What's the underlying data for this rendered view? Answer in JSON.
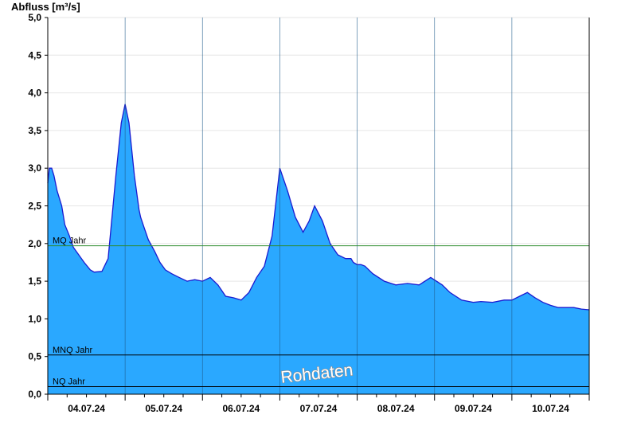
{
  "chart_data": {
    "type": "area",
    "title": "",
    "ylabel": "Abfluss [m³/s]",
    "xlabel": "",
    "ylim": [
      0,
      5
    ],
    "xlim": [
      0,
      7
    ],
    "yticks": [
      "0,0",
      "0,5",
      "1,0",
      "1,5",
      "2,0",
      "2,5",
      "3,0",
      "3,5",
      "4,0",
      "4,5",
      "5,0"
    ],
    "xtick_labels": [
      "04.07.24",
      "05.07.24",
      "06.07.24",
      "07.07.24",
      "08.07.24",
      "09.07.24",
      "10.07.24"
    ],
    "grid": true,
    "series": [
      {
        "color": "#2aa8ff",
        "line_color": "#1a1ad0",
        "x": [
          0,
          0.02,
          0.05,
          0.08,
          0.12,
          0.18,
          0.22,
          0.28,
          0.33,
          0.4,
          0.47,
          0.55,
          0.6,
          0.7,
          0.78,
          0.88,
          0.95,
          1.0,
          1.05,
          1.12,
          1.18,
          1.2,
          1.25,
          1.3,
          1.38,
          1.45,
          1.52,
          1.6,
          1.7,
          1.8,
          1.9,
          2.0,
          2.1,
          2.2,
          2.3,
          2.4,
          2.5,
          2.6,
          2.7,
          2.8,
          2.9,
          3.0,
          3.1,
          3.2,
          3.3,
          3.38,
          3.45,
          3.55,
          3.65,
          3.75,
          3.85,
          3.92,
          3.95,
          4.0,
          4.05,
          4.1,
          4.2,
          4.35,
          4.5,
          4.65,
          4.8,
          4.95,
          5.1,
          5.2,
          5.35,
          5.5,
          5.6,
          5.75,
          5.9,
          6.0,
          6.1,
          6.2,
          6.3,
          6.4,
          6.5,
          6.6,
          6.7,
          6.8,
          6.9,
          7.0
        ],
        "y": [
          2.8,
          3.0,
          3.0,
          2.9,
          2.7,
          2.5,
          2.25,
          2.1,
          1.95,
          1.85,
          1.75,
          1.65,
          1.62,
          1.63,
          1.8,
          2.9,
          3.6,
          3.85,
          3.6,
          2.9,
          2.45,
          2.35,
          2.2,
          2.05,
          1.9,
          1.75,
          1.65,
          1.6,
          1.55,
          1.5,
          1.52,
          1.5,
          1.55,
          1.45,
          1.3,
          1.28,
          1.25,
          1.35,
          1.55,
          1.7,
          2.1,
          3.0,
          2.7,
          2.35,
          2.15,
          2.3,
          2.5,
          2.3,
          2.0,
          1.85,
          1.8,
          1.8,
          1.75,
          1.72,
          1.72,
          1.7,
          1.6,
          1.5,
          1.45,
          1.47,
          1.45,
          1.55,
          1.45,
          1.35,
          1.25,
          1.22,
          1.23,
          1.22,
          1.25,
          1.25,
          1.3,
          1.35,
          1.28,
          1.22,
          1.18,
          1.15,
          1.15,
          1.15,
          1.13,
          1.12
        ]
      }
    ],
    "reference_lines": [
      {
        "label": "MQ Jahr",
        "value": 1.97,
        "color": "#2e8b2e"
      },
      {
        "label": "MNQ Jahr",
        "value": 0.52,
        "color": "#000000"
      },
      {
        "label": "NQ Jahr",
        "value": 0.1,
        "color": "#000000"
      }
    ],
    "annotation": "Rohdaten"
  }
}
